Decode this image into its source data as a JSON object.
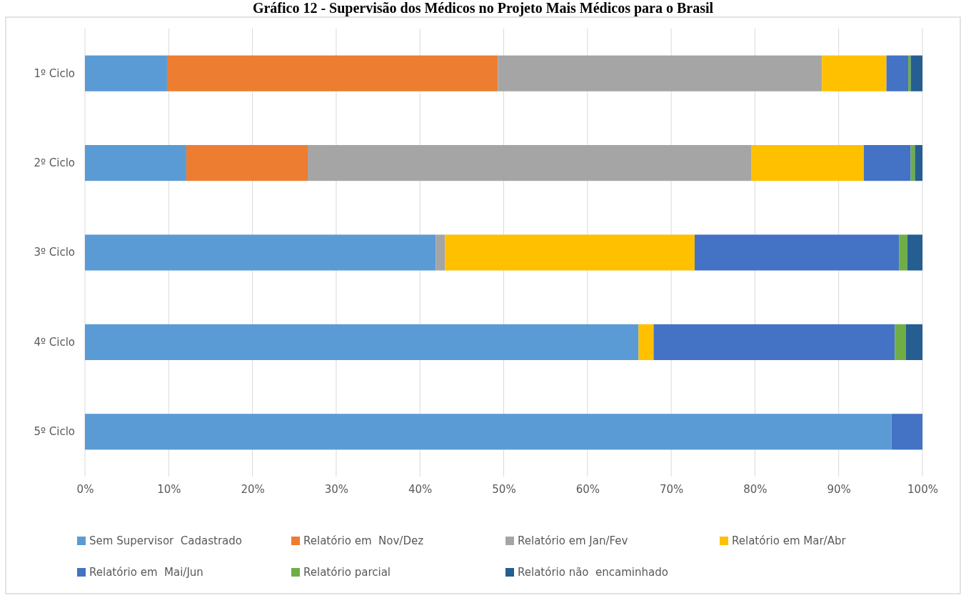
{
  "chart_data": {
    "type": "bar",
    "orientation": "horizontal",
    "stacked": true,
    "title": "Gráfico 12 - Supervisão dos Médicos no Projeto Mais Médicos para o Brasil",
    "categories": [
      "1º Ciclo",
      "2º Ciclo",
      "3º Ciclo",
      "4º Ciclo",
      "5º Ciclo"
    ],
    "series": [
      {
        "name": "Sem Supervisor  Cadastrado",
        "color": "#5b9bd5",
        "values": [
          9.8,
          12.1,
          41.9,
          66.1,
          96.3
        ]
      },
      {
        "name": "Relatório em  Nov/Dez",
        "color": "#ed7d31",
        "values": [
          39.5,
          14.5,
          0,
          0,
          0
        ]
      },
      {
        "name": "Relatório em Jan/Fev",
        "color": "#a5a5a5",
        "values": [
          38.7,
          53.0,
          1.1,
          0,
          0
        ]
      },
      {
        "name": "Relatório em Mar/Abr",
        "color": "#ffc000",
        "values": [
          7.7,
          13.4,
          29.8,
          1.8,
          0
        ]
      },
      {
        "name": "Relatório em  Mai/Jun",
        "color": "#4472c4",
        "values": [
          2.6,
          5.6,
          24.4,
          28.8,
          3.7
        ]
      },
      {
        "name": "Relatório parcial",
        "color": "#70ad47",
        "values": [
          0.3,
          0.5,
          1.0,
          1.3,
          0
        ]
      },
      {
        "name": "Relatório não  encaminhado",
        "color": "#255e91",
        "values": [
          1.4,
          0.9,
          1.8,
          2.0,
          0
        ]
      }
    ],
    "xlim": [
      0,
      100
    ],
    "xticks": [
      {
        "value": 0,
        "label": "0%"
      },
      {
        "value": 10,
        "label": "10%"
      },
      {
        "value": 20,
        "label": "20%"
      },
      {
        "value": 30,
        "label": "30%"
      },
      {
        "value": 40,
        "label": "40%"
      },
      {
        "value": 50,
        "label": "50%"
      },
      {
        "value": 60,
        "label": "60%"
      },
      {
        "value": 70,
        "label": "70%"
      },
      {
        "value": 80,
        "label": "80%"
      },
      {
        "value": 90,
        "label": "90%"
      },
      {
        "value": 100,
        "label": "100%"
      }
    ],
    "grid": "x",
    "legend": "bottom"
  }
}
